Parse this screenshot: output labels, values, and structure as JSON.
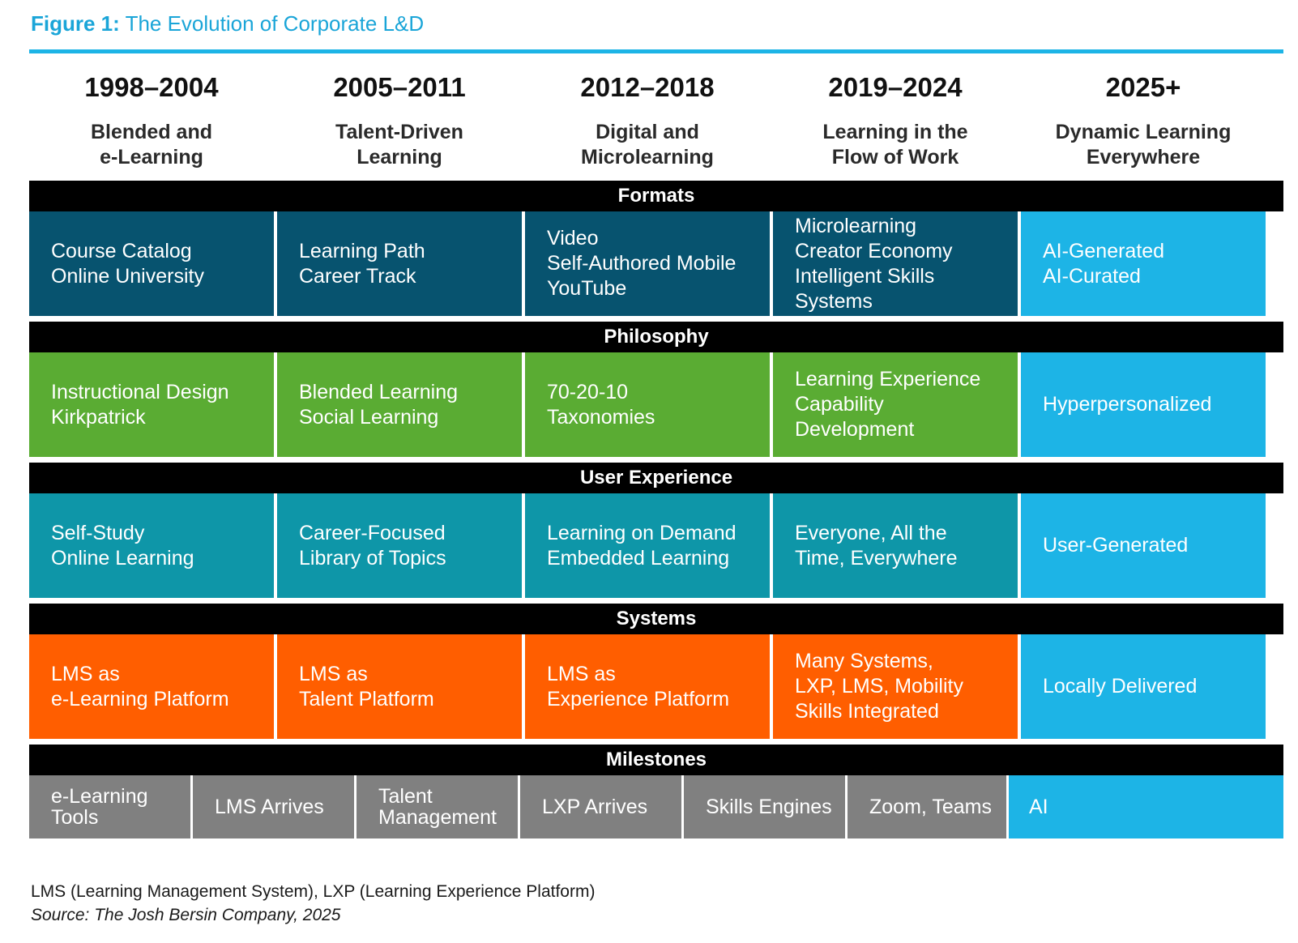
{
  "figure": {
    "label": "Figure 1:",
    "title": "The Evolution of Corporate L&D"
  },
  "eras": [
    {
      "years": "1998–2004",
      "name": "Blended and\ne-Learning"
    },
    {
      "years": "2005–2011",
      "name": "Talent-Driven\nLearning"
    },
    {
      "years": "2012–2018",
      "name": "Digital and\nMicrolearning"
    },
    {
      "years": "2019–2024",
      "name": "Learning in the\nFlow of Work"
    },
    {
      "years": "2025+",
      "name": "Dynamic Learning\nEverywhere"
    }
  ],
  "colors": {
    "formats": "#07536f",
    "philosophy": "#5aac33",
    "user_experience": "#0e96a8",
    "systems": "#ff5e00",
    "milestones": "#808080",
    "future": "#1db4e6",
    "band": "#000000",
    "title": "#1aa5d8"
  },
  "sections": [
    {
      "key": "formats",
      "label": "Formats",
      "cells": [
        "Course Catalog\nOnline University",
        "Learning Path\nCareer Track",
        "Video\nSelf-Authored Mobile\nYouTube",
        "Microlearning\nCreator Economy\nIntelligent Skills\nSystems",
        "AI-Generated\nAI-Curated"
      ]
    },
    {
      "key": "philosophy",
      "label": "Philosophy",
      "cells": [
        "Instructional Design\nKirkpatrick",
        "Blended Learning\nSocial Learning",
        "70-20-10\nTaxonomies",
        "Learning Experience\nCapability\nDevelopment",
        "Hyperpersonalized"
      ]
    },
    {
      "key": "user_experience",
      "label": "User Experience",
      "cells": [
        "Self-Study\nOnline Learning",
        "Career-Focused\nLibrary of Topics",
        "Learning on Demand\nEmbedded Learning",
        "Everyone, All the\nTime, Everywhere",
        "User-Generated"
      ]
    },
    {
      "key": "systems",
      "label": "Systems",
      "cells": [
        "LMS as\ne-Learning Platform",
        "LMS as\nTalent Platform",
        "LMS as\nExperience Platform",
        "Many Systems,\nLXP, LMS, Mobility\nSkills Integrated",
        "Locally Delivered"
      ]
    }
  ],
  "milestones": {
    "label": "Milestones",
    "items": [
      "e-Learning\nTools",
      "LMS Arrives",
      "Talent\nManagement",
      "LXP Arrives",
      "Skills Engines",
      "Zoom, Teams",
      "AI"
    ]
  },
  "footnote": "LMS (Learning Management System), LXP (Learning Experience Platform)",
  "source": "Source: The Josh Bersin Company, 2025"
}
